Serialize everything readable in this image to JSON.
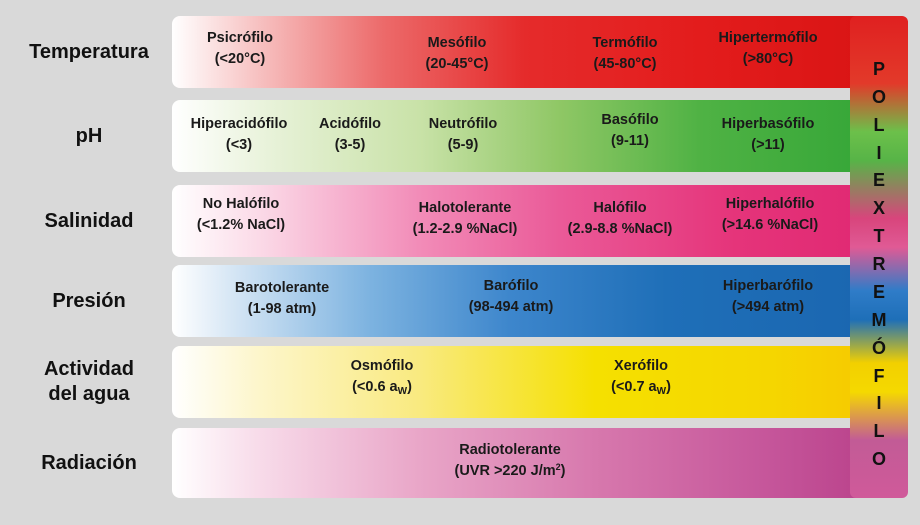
{
  "rows": [
    {
      "label": "Temperatura",
      "items": [
        {
          "name": "Psicrófilo",
          "range": "(<20°C)"
        },
        {
          "name": "Mesófilo",
          "range": "(20-45°C)"
        },
        {
          "name": "Termófilo",
          "range": "(45-80°C)"
        },
        {
          "name": "Hipertermófilo",
          "range": "(>80°C)"
        }
      ]
    },
    {
      "label": "pH",
      "items": [
        {
          "name": "Hiperacidófilo",
          "range": "(<3)"
        },
        {
          "name": "Acidófilo",
          "range": "(3-5)"
        },
        {
          "name": "Neutrófilo",
          "range": "(5-9)"
        },
        {
          "name": "Basófilo",
          "range": "(9-11)"
        },
        {
          "name": "Hiperbasófilo",
          "range": "(>11)"
        }
      ]
    },
    {
      "label": "Salinidad",
      "items": [
        {
          "name": "No Halófilo",
          "range": "(<1.2% NaCl)"
        },
        {
          "name": "Halotolerante",
          "range": "(1.2-2.9 %NaCl)"
        },
        {
          "name": "Halófilo",
          "range": "(2.9-8.8 %NaCl)"
        },
        {
          "name": "Hiperhalófilo",
          "range": "(>14.6 %NaCl)"
        }
      ]
    },
    {
      "label": "Presión",
      "items": [
        {
          "name": "Barotolerante",
          "range": "(1-98 atm)"
        },
        {
          "name": "Barófilo",
          "range": "(98-494 atm)"
        },
        {
          "name": "Hiperbarófilo",
          "range": "(>494 atm)"
        }
      ]
    },
    {
      "label_line1": "Actividad",
      "label_line2": "del agua",
      "items": [
        {
          "name": "Osmófilo",
          "range_pre": "(<0.6 a",
          "range_sub": "W",
          "range_post": ")"
        },
        {
          "name": "Xerófilo",
          "range_pre": "(<0.7 a",
          "range_sub": "W",
          "range_post": ")"
        }
      ]
    },
    {
      "label": "Radiación",
      "items": [
        {
          "name": "Radiotolerante",
          "range_pre": "(UVR >220 J/m",
          "range_sup": "2",
          "range_post": ")"
        }
      ]
    }
  ],
  "poliextremofilo": [
    "P",
    "O",
    "L",
    "I",
    "E",
    "X",
    "T",
    "R",
    "E",
    "M",
    "Ó",
    "F",
    "I",
    "L",
    "O"
  ],
  "colors": {
    "background": "#d9d9d9",
    "temperatura": "#e31c1c",
    "ph": "#3aaa35",
    "salinidad": "#e5347a",
    "presion": "#1a6ab5",
    "agua": "#f5d000",
    "radiacion": "#b9418a"
  }
}
